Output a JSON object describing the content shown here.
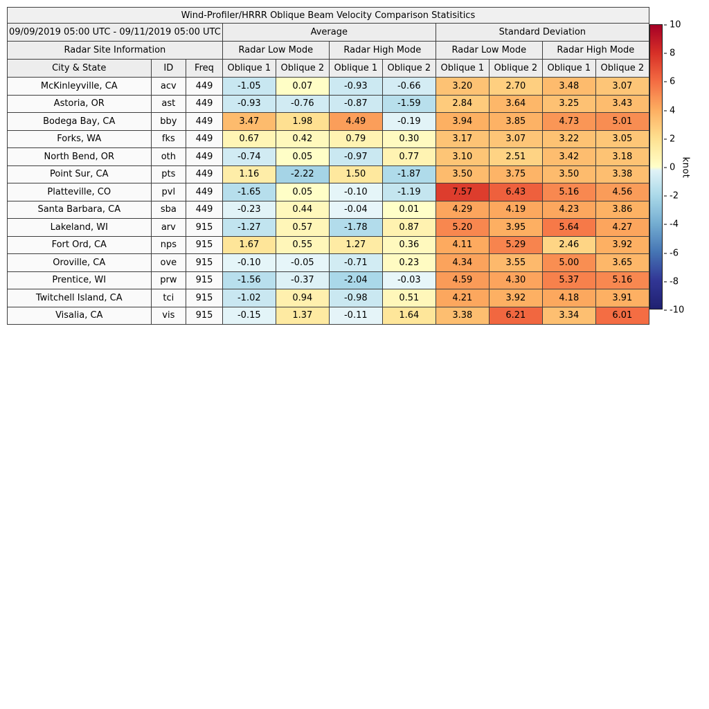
{
  "chart_data": {
    "type": "table",
    "title": "Wind-Profiler/HRRR Oblique Beam Velocity Comparison Statisitics",
    "date_range": "09/09/2019 05:00 UTC - 09/11/2019 05:00 UTC",
    "site_info_header": "Radar Site Information",
    "group_headers": [
      "Average",
      "Standard Deviation"
    ],
    "mode_headers": [
      "Radar Low Mode",
      "Radar High Mode",
      "Radar Low Mode",
      "Radar High Mode"
    ],
    "site_col_headers": [
      "City & State",
      "ID",
      "Freq"
    ],
    "oblique_headers": [
      "Oblique 1",
      "Oblique 2",
      "Oblique 1",
      "Oblique 2",
      "Oblique 1",
      "Oblique 2",
      "Oblique 1",
      "Oblique 2"
    ],
    "rows": [
      {
        "city": "McKinleyville, CA",
        "id": "acv",
        "freq": "449",
        "avg": [
          -1.05,
          0.07,
          -0.93,
          -0.66
        ],
        "std": [
          3.2,
          2.7,
          3.48,
          3.07
        ]
      },
      {
        "city": "Astoria, OR",
        "id": "ast",
        "freq": "449",
        "avg": [
          -0.93,
          -0.76,
          -0.87,
          -1.59
        ],
        "std": [
          2.84,
          3.64,
          3.25,
          3.43
        ]
      },
      {
        "city": "Bodega Bay, CA",
        "id": "bby",
        "freq": "449",
        "avg": [
          3.47,
          1.98,
          4.49,
          -0.19
        ],
        "std": [
          3.94,
          3.85,
          4.73,
          5.01
        ]
      },
      {
        "city": "Forks, WA",
        "id": "fks",
        "freq": "449",
        "avg": [
          0.67,
          0.42,
          0.79,
          0.3
        ],
        "std": [
          3.17,
          3.07,
          3.22,
          3.05
        ]
      },
      {
        "city": "North Bend, OR",
        "id": "oth",
        "freq": "449",
        "avg": [
          -0.74,
          0.05,
          -0.97,
          0.77
        ],
        "std": [
          3.1,
          2.51,
          3.42,
          3.18
        ]
      },
      {
        "city": "Point Sur, CA",
        "id": "pts",
        "freq": "449",
        "avg": [
          1.16,
          -2.22,
          1.5,
          -1.87
        ],
        "std": [
          3.5,
          3.75,
          3.5,
          3.38
        ]
      },
      {
        "city": "Platteville, CO",
        "id": "pvl",
        "freq": "449",
        "avg": [
          -1.65,
          0.05,
          -0.1,
          -1.19
        ],
        "std": [
          7.57,
          6.43,
          5.16,
          4.56
        ]
      },
      {
        "city": "Santa Barbara, CA",
        "id": "sba",
        "freq": "449",
        "avg": [
          -0.23,
          0.44,
          -0.04,
          0.01
        ],
        "std": [
          4.29,
          4.19,
          4.23,
          3.86
        ]
      },
      {
        "city": "Lakeland, WI",
        "id": "arv",
        "freq": "915",
        "avg": [
          -1.27,
          0.57,
          -1.78,
          0.87
        ],
        "std": [
          5.2,
          3.95,
          5.64,
          4.27
        ]
      },
      {
        "city": "Fort Ord, CA",
        "id": "nps",
        "freq": "915",
        "avg": [
          1.67,
          0.55,
          1.27,
          0.36
        ],
        "std": [
          4.11,
          5.29,
          2.46,
          3.92
        ]
      },
      {
        "city": "Oroville, CA",
        "id": "ove",
        "freq": "915",
        "avg": [
          -0.1,
          -0.05,
          -0.71,
          0.23
        ],
        "std": [
          4.34,
          3.55,
          5.0,
          3.65
        ]
      },
      {
        "city": "Prentice, WI",
        "id": "prw",
        "freq": "915",
        "avg": [
          -1.56,
          -0.37,
          -2.04,
          -0.03
        ],
        "std": [
          4.59,
          4.3,
          5.37,
          5.16
        ]
      },
      {
        "city": "Twitchell Island, CA",
        "id": "tci",
        "freq": "915",
        "avg": [
          -1.02,
          0.94,
          -0.98,
          0.51
        ],
        "std": [
          4.21,
          3.92,
          4.18,
          3.91
        ]
      },
      {
        "city": "Visalia, CA",
        "id": "vis",
        "freq": "915",
        "avg": [
          -0.15,
          1.37,
          -0.11,
          1.64
        ],
        "std": [
          3.38,
          6.21,
          3.34,
          6.01
        ]
      }
    ],
    "colorbar": {
      "label": "knot",
      "min": -10,
      "max": 10,
      "ticks": [
        10,
        8,
        6,
        4,
        2,
        0,
        -2,
        -4,
        -6,
        -8,
        -10
      ]
    },
    "colormap": {
      "positive": [
        "#ffffc8",
        "#fee090",
        "#fdae61",
        "#f46d43",
        "#d73027",
        "#a50026"
      ],
      "negative": [
        "#e8f6f9",
        "#abd9e9",
        "#74add1",
        "#4575b4",
        "#313695",
        "#1f2070"
      ]
    }
  }
}
